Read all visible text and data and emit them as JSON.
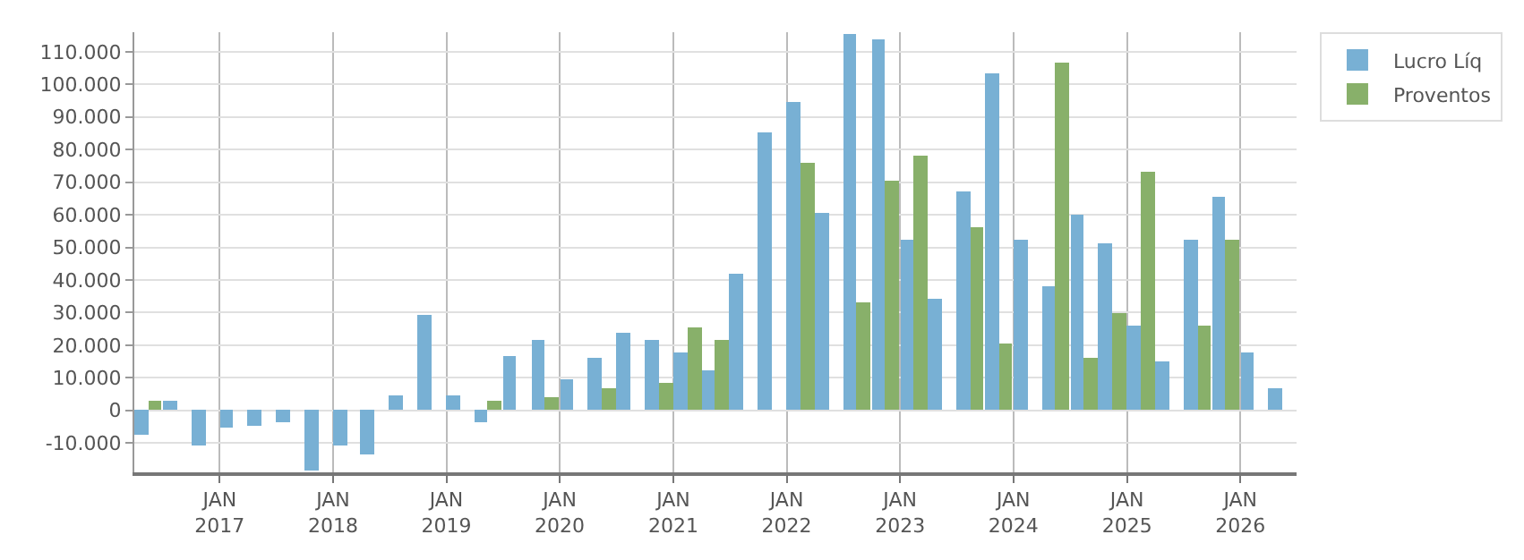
{
  "chart_data": {
    "type": "bar",
    "x": [
      "2016-05-15",
      "2016-08-15",
      "2016-11-15",
      "2017-02-15",
      "2017-05-15",
      "2017-08-15",
      "2017-11-15",
      "2018-02-15",
      "2018-05-15",
      "2018-08-15",
      "2018-11-15",
      "2019-02-15",
      "2019-05-15",
      "2019-08-15",
      "2019-11-15",
      "2020-02-15",
      "2020-05-15",
      "2020-08-15",
      "2020-11-15",
      "2021-02-15",
      "2021-05-15",
      "2021-08-15",
      "2021-11-15",
      "2022-02-15",
      "2022-05-15",
      "2022-08-15",
      "2022-11-15",
      "2023-02-15",
      "2023-05-15",
      "2023-08-15",
      "2023-11-15",
      "2024-02-15",
      "2024-05-15",
      "2024-08-15",
      "2024-11-15",
      "2025-02-15",
      "2025-05-15",
      "2025-08-15",
      "2025-11-15",
      "2026-02-15",
      "2026-05-15"
    ],
    "series": [
      {
        "name": "Lucro Líq",
        "color": "#78b0d4",
        "values": [
          -7300,
          3200,
          -11000,
          -5400,
          -4900,
          -3400,
          -18500,
          -10500,
          -13600,
          4800,
          29200,
          4800,
          -3400,
          16500,
          21600,
          9300,
          16000,
          23600,
          21600,
          18000,
          12400,
          41900,
          85200,
          94400,
          60800,
          115400,
          113800,
          52100,
          34300,
          67400,
          103600,
          52600,
          37900,
          60300,
          51100,
          26100,
          14900,
          52100,
          65400,
          18000,
          6800
        ]
      },
      {
        "name": "Proventos",
        "color": "#88b06a",
        "values": [
          2700,
          0,
          0,
          0,
          0,
          0,
          0,
          0,
          0,
          0,
          0,
          0,
          2700,
          0,
          4200,
          0,
          6800,
          0,
          8300,
          25600,
          21600,
          0,
          0,
          76100,
          0,
          33300,
          70500,
          78100,
          0,
          56200,
          20500,
          0,
          106600,
          16000,
          29700,
          73000,
          0,
          26100,
          52100,
          0,
          0
        ]
      }
    ],
    "xlim": [
      "2016-04-01",
      "2026-07-01"
    ],
    "xticks": [
      {
        "value": "2017-01-01",
        "label": "JAN\n2017"
      },
      {
        "value": "2018-01-01",
        "label": "JAN\n2018"
      },
      {
        "value": "2019-01-01",
        "label": "JAN\n2019"
      },
      {
        "value": "2020-01-01",
        "label": "JAN\n2020"
      },
      {
        "value": "2021-01-01",
        "label": "JAN\n2021"
      },
      {
        "value": "2022-01-01",
        "label": "JAN\n2022"
      },
      {
        "value": "2023-01-01",
        "label": "JAN\n2023"
      },
      {
        "value": "2024-01-01",
        "label": "JAN\n2024"
      },
      {
        "value": "2025-01-01",
        "label": "JAN\n2025"
      },
      {
        "value": "2026-01-01",
        "label": "JAN\n2026"
      }
    ],
    "ylim": [
      -19000,
      116000
    ],
    "yticks": [
      {
        "value": -10000,
        "label": "-10.000"
      },
      0,
      {
        "value": 10000,
        "label": "10.000"
      },
      {
        "value": 20000,
        "label": "20.000"
      },
      {
        "value": 30000,
        "label": "30.000"
      },
      {
        "value": 40000,
        "label": "40.000"
      },
      {
        "value": 50000,
        "label": "50.000"
      },
      {
        "value": 60000,
        "label": "60.000"
      },
      {
        "value": 70000,
        "label": "70.000"
      },
      {
        "value": 80000,
        "label": "80.000"
      },
      {
        "value": 90000,
        "label": "90.000"
      },
      {
        "value": 100000,
        "label": "100.000"
      },
      {
        "value": 110000,
        "label": "110.000"
      }
    ],
    "grid": true,
    "legend": "top right"
  }
}
